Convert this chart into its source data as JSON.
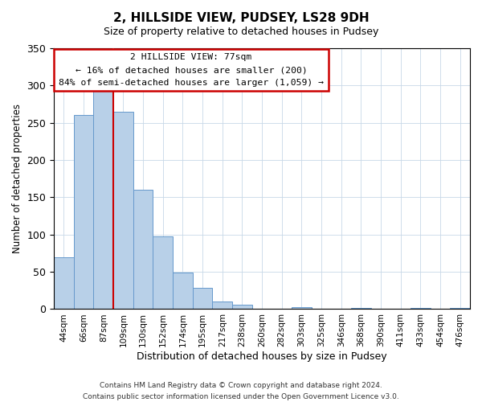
{
  "title": "2, HILLSIDE VIEW, PUDSEY, LS28 9DH",
  "subtitle": "Size of property relative to detached houses in Pudsey",
  "xlabel": "Distribution of detached houses by size in Pudsey",
  "ylabel": "Number of detached properties",
  "bar_labels": [
    "44sqm",
    "66sqm",
    "87sqm",
    "109sqm",
    "130sqm",
    "152sqm",
    "174sqm",
    "195sqm",
    "217sqm",
    "238sqm",
    "260sqm",
    "282sqm",
    "303sqm",
    "325sqm",
    "346sqm",
    "368sqm",
    "390sqm",
    "411sqm",
    "433sqm",
    "454sqm",
    "476sqm"
  ],
  "bar_values": [
    70,
    260,
    293,
    265,
    160,
    98,
    49,
    29,
    10,
    6,
    0,
    0,
    3,
    0,
    0,
    2,
    0,
    0,
    2,
    0,
    2
  ],
  "bar_color": "#b8d0e8",
  "bar_edge_color": "#6699cc",
  "ylim": [
    0,
    350
  ],
  "yticks": [
    0,
    50,
    100,
    150,
    200,
    250,
    300,
    350
  ],
  "vline_x": 2.5,
  "vline_color": "#cc0000",
  "annotation_line1": "2 HILLSIDE VIEW: 77sqm",
  "annotation_line2": "← 16% of detached houses are smaller (200)",
  "annotation_line3": "84% of semi-detached houses are larger (1,059) →",
  "annotation_box_color": "#cc0000",
  "footer1": "Contains HM Land Registry data © Crown copyright and database right 2024.",
  "footer2": "Contains public sector information licensed under the Open Government Licence v3.0.",
  "background_color": "#ffffff",
  "grid_color": "#c8d8e8"
}
